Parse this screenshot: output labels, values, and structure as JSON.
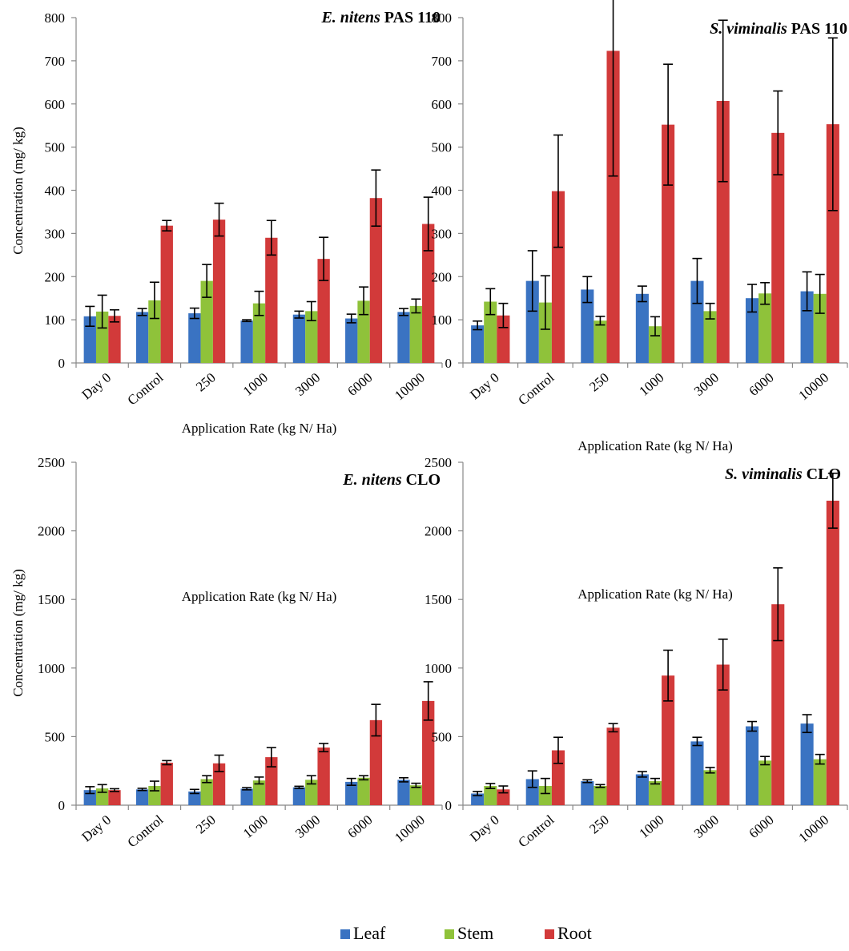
{
  "colors": {
    "Leaf": "#3a73c2",
    "Stem": "#8fc23a",
    "Root": "#d23a3a"
  },
  "legend": [
    "Leaf",
    "Stem",
    "Root"
  ],
  "chart_data": [
    {
      "type": "bar",
      "title_italic": "E. nitens",
      "title_rest": " PAS 110",
      "xlabel": "Application Rate (kg N/ Ha)",
      "ylabel": "Concentration (mg/ kg)",
      "ylim": [
        0,
        800
      ],
      "ytick_step": 100,
      "legend_position": "bottom-center",
      "categories": [
        "Day 0",
        "Control",
        "250",
        "1000",
        "3000",
        "6000",
        "10000"
      ],
      "series": [
        {
          "name": "Leaf",
          "values": [
            108,
            118,
            115,
            98,
            112,
            103,
            118
          ],
          "errors": [
            23,
            8,
            12,
            2,
            8,
            10,
            8
          ]
        },
        {
          "name": "Stem",
          "values": [
            119,
            145,
            190,
            138,
            120,
            144,
            132
          ],
          "errors": [
            38,
            42,
            38,
            28,
            22,
            32,
            16
          ]
        },
        {
          "name": "Root",
          "values": [
            109,
            318,
            332,
            290,
            241,
            382,
            322
          ],
          "errors": [
            14,
            12,
            38,
            40,
            50,
            65,
            62
          ]
        }
      ]
    },
    {
      "type": "bar",
      "title_italic": "S. viminalis",
      "title_rest": " PAS 110",
      "xlabel": "Application Rate (kg N/ Ha)",
      "ylabel": "",
      "ylim": [
        0,
        800
      ],
      "ytick_step": 100,
      "legend_position": "bottom-center",
      "categories": [
        "Day 0",
        "Control",
        "250",
        "1000",
        "3000",
        "6000",
        "10000"
      ],
      "series": [
        {
          "name": "Leaf",
          "values": [
            87,
            190,
            170,
            160,
            190,
            150,
            166
          ],
          "errors": [
            10,
            70,
            30,
            18,
            52,
            32,
            45
          ]
        },
        {
          "name": "Stem",
          "values": [
            142,
            140,
            98,
            85,
            120,
            161,
            160
          ],
          "errors": [
            30,
            62,
            10,
            22,
            18,
            25,
            45
          ]
        },
        {
          "name": "Root",
          "values": [
            110,
            398,
            723,
            552,
            607,
            533,
            553
          ],
          "errors": [
            28,
            130,
            290,
            140,
            187,
            97,
            200
          ]
        }
      ]
    },
    {
      "type": "bar",
      "title_italic": "E. nitens",
      "title_rest": " CLO",
      "xlabel": "Application Rate (kg N/ Ha)",
      "ylabel": "Concentration (mg/ kg)",
      "ylim": [
        0,
        2500
      ],
      "ytick_step": 500,
      "legend_position": "bottom-center",
      "categories": [
        "Day 0",
        "Control",
        "250",
        "1000",
        "3000",
        "6000",
        "10000"
      ],
      "series": [
        {
          "name": "Leaf",
          "values": [
            110,
            115,
            100,
            120,
            130,
            170,
            185
          ],
          "errors": [
            25,
            8,
            15,
            8,
            8,
            25,
            15
          ]
        },
        {
          "name": "Stem",
          "values": [
            122,
            140,
            190,
            180,
            185,
            200,
            145
          ],
          "errors": [
            28,
            35,
            25,
            25,
            30,
            15,
            15
          ]
        },
        {
          "name": "Root",
          "values": [
            110,
            310,
            305,
            350,
            420,
            620,
            760
          ],
          "errors": [
            10,
            15,
            60,
            70,
            30,
            115,
            140
          ]
        }
      ]
    },
    {
      "type": "bar",
      "title_italic": "S. viminalis",
      "title_rest": " CLO",
      "xlabel": "Application Rate (kg N/ Ha)",
      "ylabel": "",
      "ylim": [
        0,
        2500
      ],
      "ytick_step": 500,
      "legend_position": "bottom-center",
      "categories": [
        "Day 0",
        "Control",
        "250",
        "1000",
        "3000",
        "6000",
        "10000"
      ],
      "series": [
        {
          "name": "Leaf",
          "values": [
            85,
            190,
            175,
            225,
            465,
            575,
            595
          ],
          "errors": [
            15,
            60,
            10,
            20,
            30,
            35,
            65
          ]
        },
        {
          "name": "Stem",
          "values": [
            140,
            140,
            140,
            175,
            255,
            325,
            335
          ],
          "errors": [
            18,
            55,
            10,
            20,
            20,
            30,
            35
          ]
        },
        {
          "name": "Root",
          "values": [
            115,
            400,
            565,
            945,
            1025,
            1465,
            2220
          ],
          "errors": [
            25,
            95,
            30,
            185,
            185,
            265,
            200
          ]
        }
      ]
    }
  ]
}
